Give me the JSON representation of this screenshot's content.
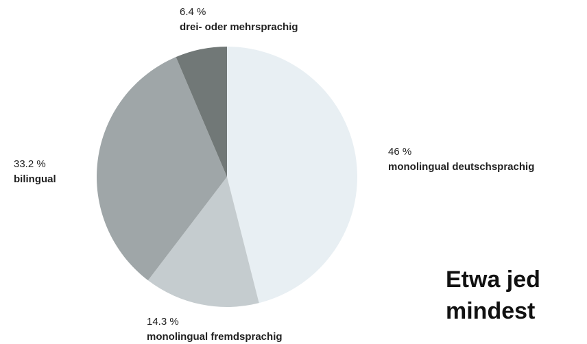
{
  "chart_data": {
    "type": "pie",
    "categories": [
      "monolingual deutschsprachig",
      "monolingual fremdsprachig",
      "bilingual",
      "drei- oder mehrsprachig"
    ],
    "values": [
      46,
      14.3,
      33.2,
      6.4
    ],
    "value_labels": [
      "46 %",
      "14.3 %",
      "33.2 %",
      "6.4 %"
    ],
    "colors": [
      "#e8eff3",
      "#c5cccf",
      "#9fa6a8",
      "#717877"
    ],
    "annotations": [
      "Etwa jed",
      "mindest"
    ]
  }
}
